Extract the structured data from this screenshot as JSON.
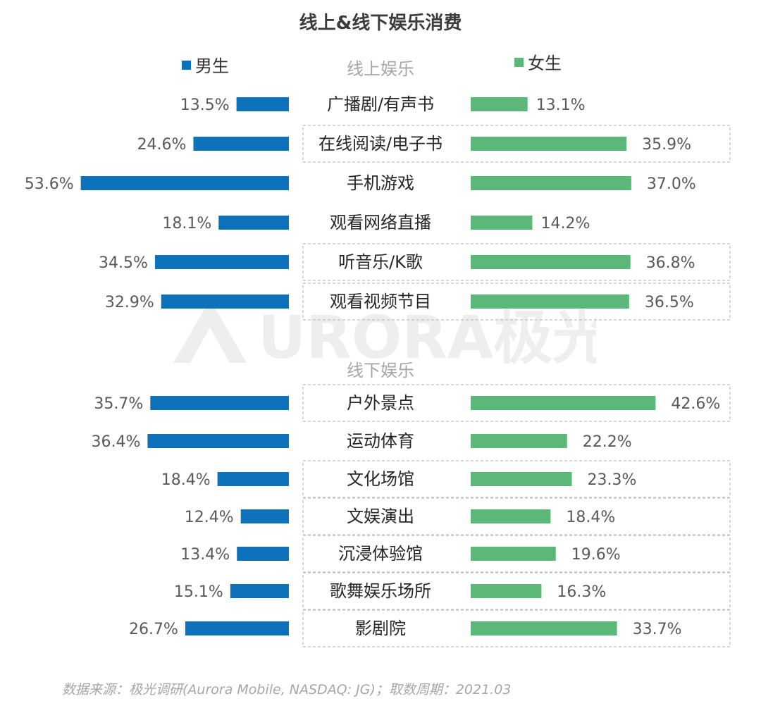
{
  "title": "线上&线下娱乐消费",
  "legend": {
    "male": "男生",
    "female": "女生"
  },
  "colors": {
    "male": "#0e72ba",
    "female": "#5bb879",
    "box_border": "#bfbfbf"
  },
  "footer": "数据来源：极光调研(Aurora Mobile, NASDAQ: JG)；取数周期：2021.03",
  "watermark": "URORA极光",
  "chart_data": {
    "type": "bar",
    "orientation": "horizontal-butterfly",
    "series": [
      {
        "name": "男生",
        "side": "left"
      },
      {
        "name": "女生",
        "side": "right"
      }
    ],
    "groups": [
      {
        "label": "线上娱乐",
        "items": [
          {
            "category": "广播剧/有声书",
            "male": 13.5,
            "female": 13.1,
            "boxed": false
          },
          {
            "category": "在线阅读/电子书",
            "male": 24.6,
            "female": 35.9,
            "boxed": true
          },
          {
            "category": "手机游戏",
            "male": 53.6,
            "female": 37.0,
            "boxed": false
          },
          {
            "category": "观看网络直播",
            "male": 18.1,
            "female": 14.2,
            "boxed": false
          },
          {
            "category": "听音乐/K歌",
            "male": 34.5,
            "female": 36.8,
            "boxed": true
          },
          {
            "category": "观看视频节目",
            "male": 32.9,
            "female": 36.5,
            "boxed": true
          }
        ]
      },
      {
        "label": "线下娱乐",
        "items": [
          {
            "category": "户外景点",
            "male": 35.7,
            "female": 42.6,
            "boxed": true
          },
          {
            "category": "运动体育",
            "male": 36.4,
            "female": 22.2,
            "boxed": false
          },
          {
            "category": "文化场馆",
            "male": 18.4,
            "female": 23.3,
            "boxed": true
          },
          {
            "category": "文娱演出",
            "male": 12.4,
            "female": 18.4,
            "boxed": true
          },
          {
            "category": "沉浸体验馆",
            "male": 13.4,
            "female": 19.6,
            "boxed": true
          },
          {
            "category": "歌舞娱乐场所",
            "male": 15.1,
            "female": 16.3,
            "boxed": true
          },
          {
            "category": "影剧院",
            "male": 26.7,
            "female": 33.7,
            "boxed": true
          }
        ]
      }
    ],
    "value_format": "percent-1dp"
  }
}
